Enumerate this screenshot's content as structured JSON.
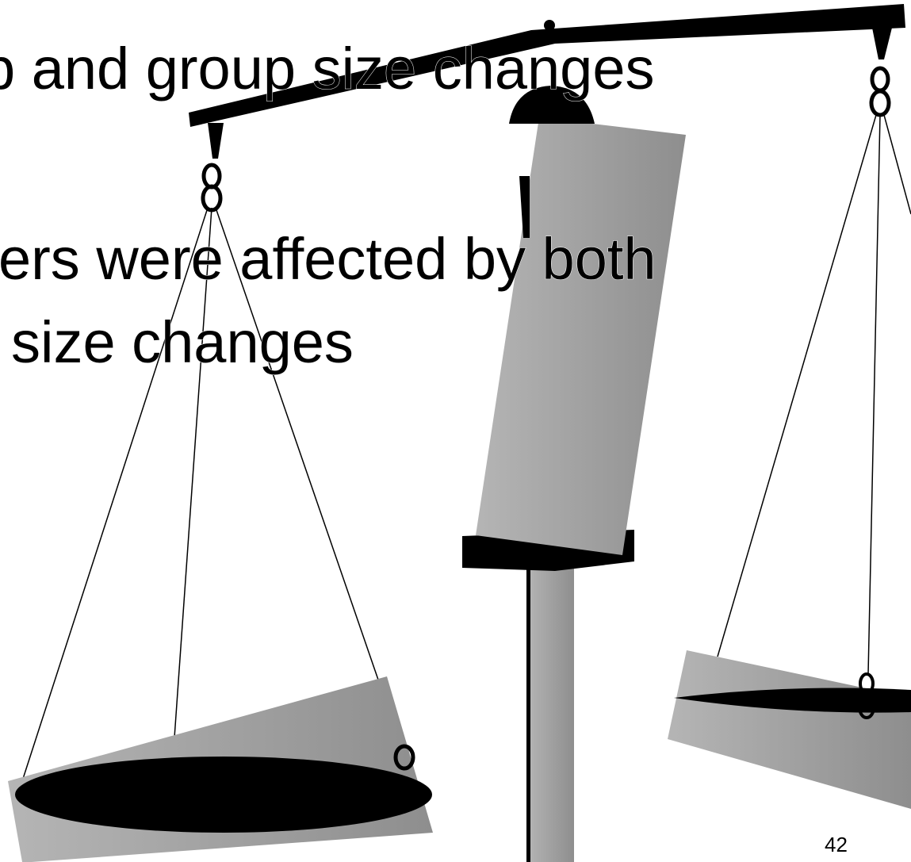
{
  "slide": {
    "lines": [
      "p and group size changes",
      "ers were affected by both",
      "size changes"
    ],
    "page_number": "42"
  }
}
